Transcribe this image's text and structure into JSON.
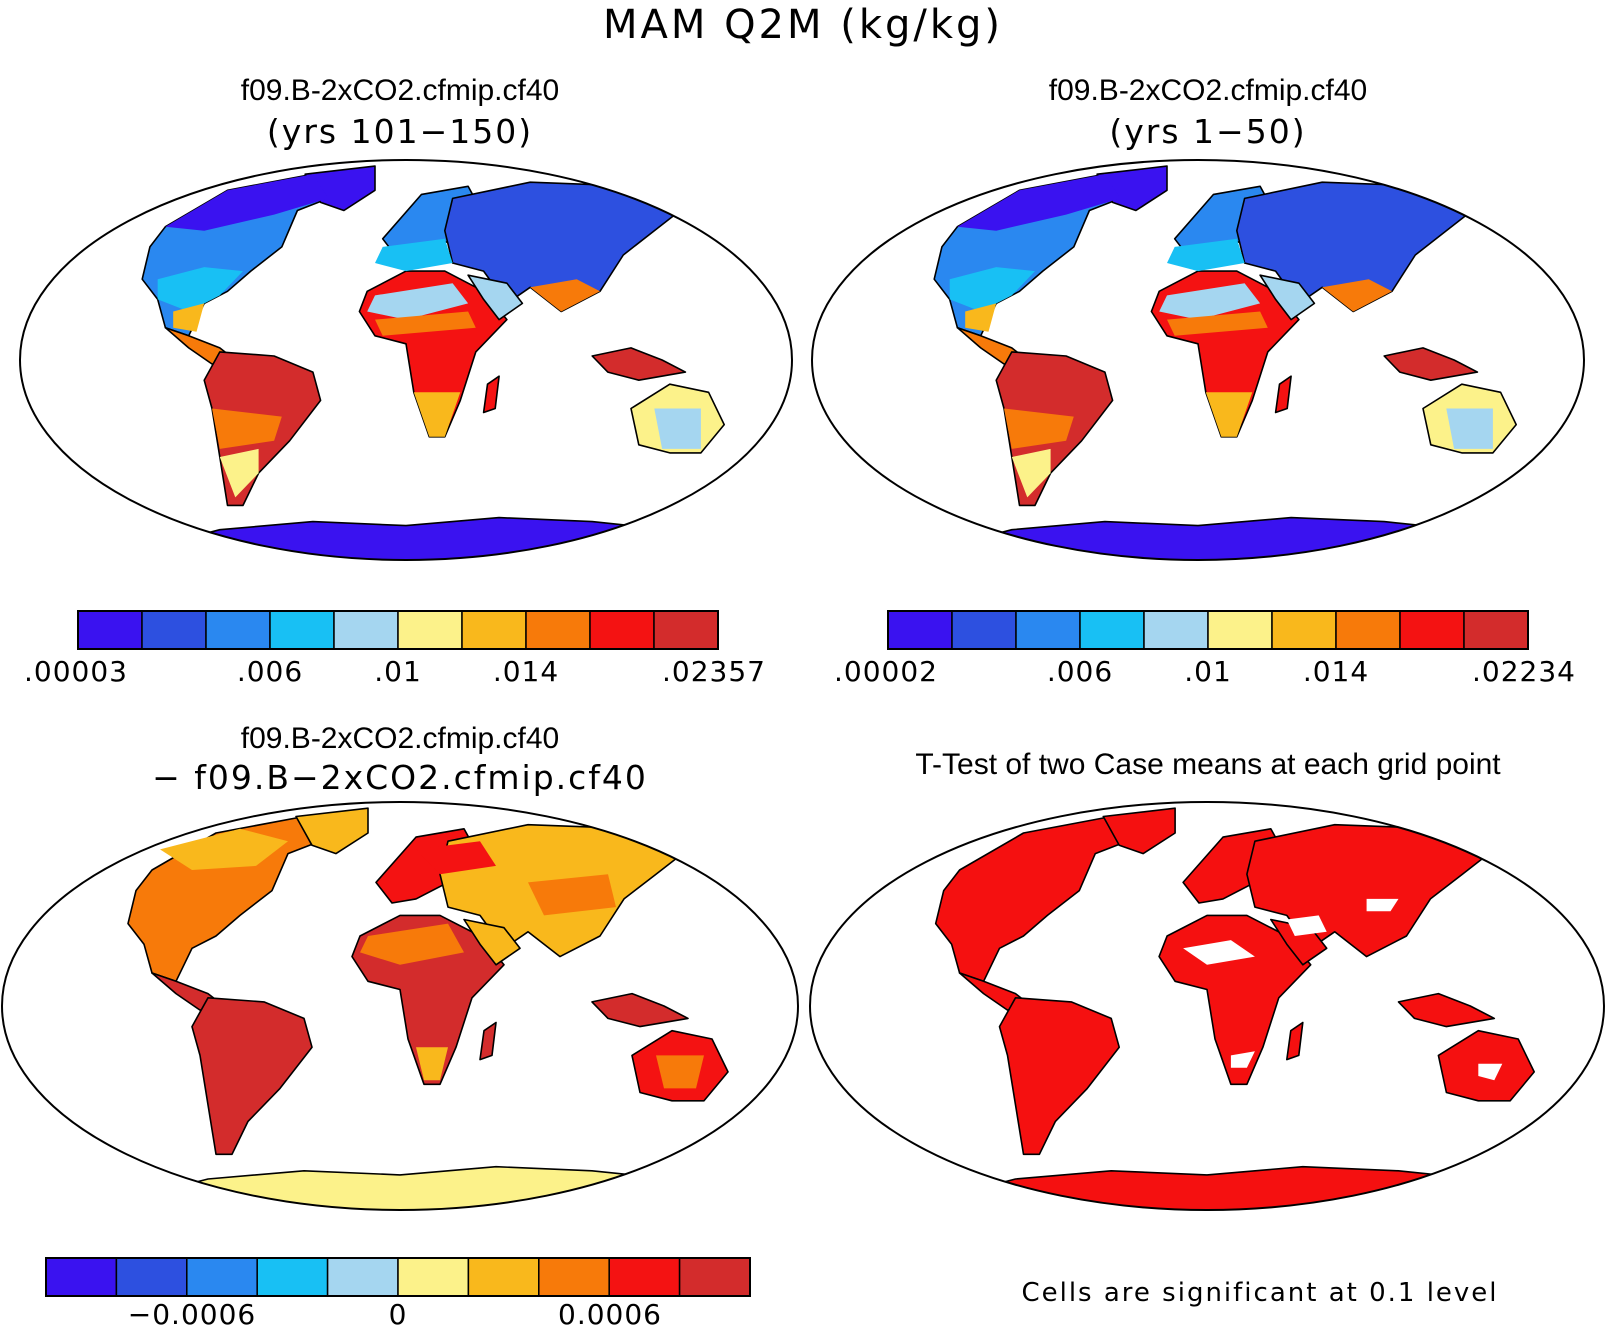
{
  "figure_title": "MAM Q2M (kg/kg)",
  "colorbar_colors": [
    "#3a12f0",
    "#2d50e0",
    "#2a88f0",
    "#18c0f4",
    "#a5d6f0",
    "#fcf28a",
    "#f9b81c",
    "#f77a0a",
    "#f41212",
    "#d32c2c"
  ],
  "land_color": {
    "top_left_north": "#2a78f0",
    "difference": "#f6a020",
    "ttest": "#f51010"
  },
  "panels": [
    {
      "id": "case1",
      "title": "f09.B-2xCO2.cfmip.cf40",
      "subtitle": "(yrs 101−150)",
      "colorbar_ticks": [
        ".00003",
        ".006",
        ".01",
        ".014",
        ".02357"
      ]
    },
    {
      "id": "case2",
      "title": "f09.B-2xCO2.cfmip.cf40",
      "subtitle": "(yrs 1−50)",
      "colorbar_ticks": [
        ".00002",
        ".006",
        ".01",
        ".014",
        ".02234"
      ]
    },
    {
      "id": "difference",
      "title": "f09.B-2xCO2.cfmip.cf40",
      "subtitle": "− f09.B−2xCO2.cfmip.cf40",
      "colorbar_ticks": [
        "−0.0006",
        "0",
        "0.0006"
      ]
    },
    {
      "id": "ttest",
      "title": "T-Test of two Case means at each grid point",
      "subtitle": "",
      "note": "Cells are significant at 0.1 level"
    }
  ]
}
